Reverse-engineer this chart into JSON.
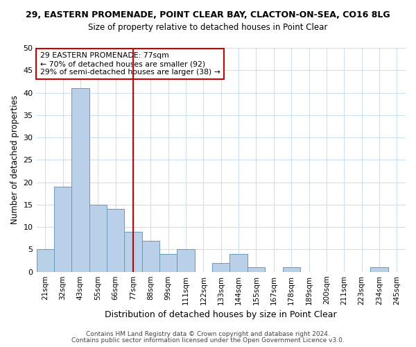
{
  "title_line1": "29, EASTERN PROMENADE, POINT CLEAR BAY, CLACTON-ON-SEA, CO16 8LG",
  "title_line2": "Size of property relative to detached houses in Point Clear",
  "xlabel": "Distribution of detached houses by size in Point Clear",
  "ylabel": "Number of detached properties",
  "bin_labels": [
    "21sqm",
    "32sqm",
    "43sqm",
    "55sqm",
    "66sqm",
    "77sqm",
    "88sqm",
    "99sqm",
    "111sqm",
    "122sqm",
    "133sqm",
    "144sqm",
    "155sqm",
    "167sqm",
    "178sqm",
    "189sqm",
    "200sqm",
    "211sqm",
    "223sqm",
    "234sqm",
    "245sqm"
  ],
  "bar_heights": [
    5,
    19,
    41,
    15,
    14,
    9,
    7,
    4,
    5,
    0,
    2,
    4,
    1,
    0,
    1,
    0,
    0,
    0,
    0,
    1,
    0
  ],
  "bar_color": "#b8d0e8",
  "bar_edge_color": "#6699bb",
  "vline_x_index": 5,
  "vline_color": "#cc0000",
  "ylim": [
    0,
    50
  ],
  "yticks": [
    0,
    5,
    10,
    15,
    20,
    25,
    30,
    35,
    40,
    45,
    50
  ],
  "annotation_box_text": [
    "29 EASTERN PROMENADE: 77sqm",
    "← 70% of detached houses are smaller (92)",
    "29% of semi-detached houses are larger (38) →"
  ],
  "annotation_box_color": "#ffffff",
  "annotation_box_edge_color": "#cc0000",
  "footer_line1": "Contains HM Land Registry data © Crown copyright and database right 2024.",
  "footer_line2": "Contains public sector information licensed under the Open Government Licence v3.0.",
  "background_color": "#ffffff",
  "grid_color": "#ccddee"
}
